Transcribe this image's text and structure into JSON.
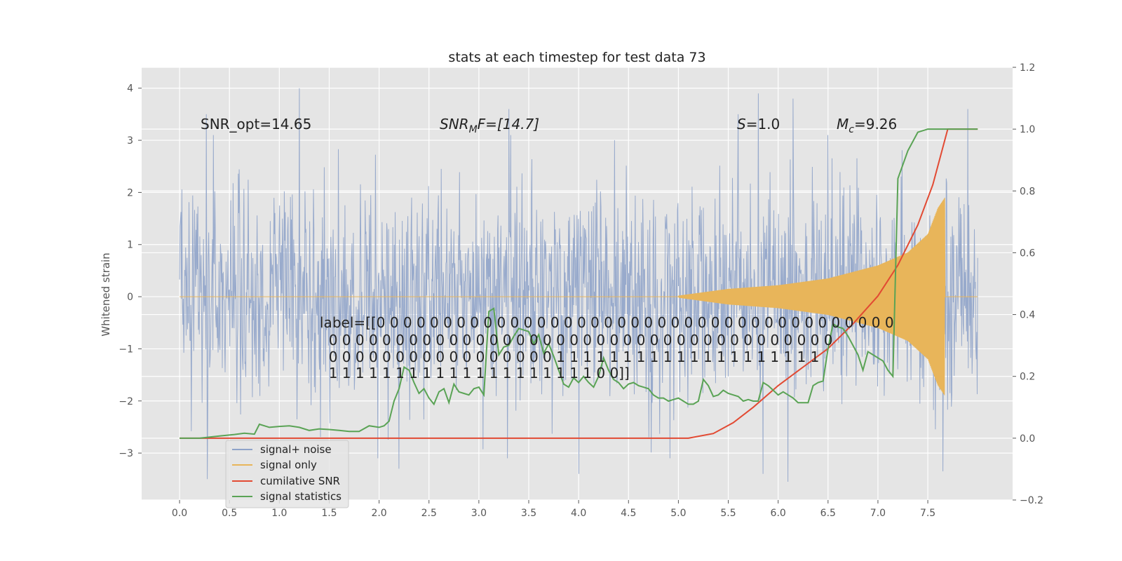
{
  "chart_data": {
    "type": "line",
    "title": "stats at each timestep for test data 73",
    "ylabel": "Whitened strain",
    "y2label": "",
    "xlim": [
      -0.38,
      8.35
    ],
    "ylim": [
      -3.9,
      4.4
    ],
    "y2lim": [
      -0.2,
      1.2
    ],
    "xticks": [
      0.0,
      0.5,
      1.0,
      1.5,
      2.0,
      2.5,
      3.0,
      3.5,
      4.0,
      4.5,
      5.0,
      5.5,
      6.0,
      6.5,
      7.0,
      7.5
    ],
    "xtick_labels": [
      "0.0",
      "0.5",
      "1.0",
      "1.5",
      "2.0",
      "2.5",
      "3.0",
      "3.5",
      "4.0",
      "4.5",
      "5.0",
      "5.5",
      "6.0",
      "6.5",
      "7.0",
      "7.5"
    ],
    "yticks": [
      -3,
      -2,
      -1,
      0,
      1,
      2,
      3,
      4
    ],
    "ytick_labels": [
      "−3",
      "−2",
      "−1",
      "0",
      "1",
      "2",
      "3",
      "4"
    ],
    "y2ticks": [
      -0.2,
      0.0,
      0.2,
      0.4,
      0.6,
      0.8,
      1.0,
      1.2
    ],
    "y2tick_labels": [
      "−0.2",
      "0.0",
      "0.2",
      "0.4",
      "0.6",
      "0.8",
      "1.0",
      "1.2"
    ],
    "grid": true,
    "legend_position": "lower-left",
    "annotations": {
      "snr_opt": "SNR_opt=14.65",
      "snr_mf_base": "SNR",
      "snr_mf_sub": "M",
      "snr_mf_rest": "F=[14.7]",
      "s_sym": "S",
      "s_val": "=1.0",
      "mc_base": "M",
      "mc_sub": "c",
      "mc_val": "=9.26",
      "label_lines": [
        "label=[[0 0 0 0 0 0 0 0 0 0 0 0 0 0 0 0 0 0 0 0 0 0 0 0 0 0 0 0 0 0 0 0 0 0 0 0 0 0 0",
        "  0 0 0 0 0 0 0 0 0 0 0 0 0 0 0 0 0 0 0 0 0 0 0 0 0 0 0 0 0 0 0 0 0 0 0 0 0 0",
        "  0 0 0 0 0 0 0 0 0 0 0 0 0 0 0 0 0 1 1 1 1 1 1 1 1 1 1 1 1 1 1 1 1 1 1 1 1",
        "  1 1 1 1 1 1 1 1 1 1 1 1 1 1 1 1 1 1 1 1 0 0]]"
      ]
    },
    "series": [
      {
        "name": "signal+ noise",
        "axis": "left",
        "color": "#8fa3c9",
        "kind": "noise",
        "x_range": [
          0.0,
          8.0
        ],
        "typical_range": [
          -2.0,
          2.0
        ],
        "notable_peaks": [
          {
            "x": 0.27,
            "y": 3.5
          },
          {
            "x": 0.28,
            "y": -3.5
          },
          {
            "x": 1.2,
            "y": 4.0
          },
          {
            "x": 2.2,
            "y": -3.3
          },
          {
            "x": 3.3,
            "y": 3.6
          },
          {
            "x": 4.0,
            "y": -3.4
          },
          {
            "x": 5.6,
            "y": 3.5
          },
          {
            "x": 5.8,
            "y": 3.9
          },
          {
            "x": 5.85,
            "y": -3.4
          },
          {
            "x": 6.1,
            "y": -3.55
          },
          {
            "x": 6.15,
            "y": 3.8
          },
          {
            "x": 7.65,
            "y": -3.35
          },
          {
            "x": 7.9,
            "y": 3.6
          }
        ]
      },
      {
        "name": "signal only",
        "axis": "left",
        "color": "#e8b55a",
        "kind": "chirp",
        "x_range": [
          0.0,
          8.0
        ],
        "onset": 5.0,
        "merger": 7.67,
        "envelope": [
          {
            "x": 5.0,
            "y": 0.02
          },
          {
            "x": 5.5,
            "y": 0.15
          },
          {
            "x": 6.0,
            "y": 0.22
          },
          {
            "x": 6.5,
            "y": 0.35
          },
          {
            "x": 7.0,
            "y": 0.6
          },
          {
            "x": 7.3,
            "y": 0.85
          },
          {
            "x": 7.5,
            "y": 1.2
          },
          {
            "x": 7.6,
            "y": 1.7
          },
          {
            "x": 7.67,
            "y": 1.9
          }
        ]
      },
      {
        "name": "cumilative SNR",
        "axis": "right",
        "color": "#e24a33",
        "x": [
          0.0,
          0.5,
          1.0,
          1.5,
          2.0,
          2.5,
          3.0,
          3.5,
          4.0,
          4.5,
          5.0,
          5.1,
          5.35,
          5.55,
          5.75,
          6.0,
          6.25,
          6.5,
          6.75,
          7.0,
          7.2,
          7.4,
          7.55,
          7.65,
          7.7,
          7.8,
          7.95,
          8.0
        ],
        "y": [
          0.0,
          0.0,
          0.0,
          0.0,
          0.0,
          0.0,
          0.0,
          0.0,
          0.0,
          0.0,
          0.0,
          0.0,
          0.015,
          0.05,
          0.1,
          0.17,
          0.23,
          0.29,
          0.37,
          0.46,
          0.56,
          0.69,
          0.82,
          0.94,
          1.0,
          1.0,
          1.0,
          1.0
        ]
      },
      {
        "name": "signal statistics",
        "axis": "right",
        "color": "#5aa355",
        "x": [
          0.0,
          0.2,
          0.4,
          0.55,
          0.65,
          0.75,
          0.8,
          0.9,
          1.0,
          1.1,
          1.2,
          1.3,
          1.4,
          1.5,
          1.6,
          1.7,
          1.8,
          1.9,
          2.0,
          2.05,
          2.1,
          2.15,
          2.2,
          2.25,
          2.3,
          2.35,
          2.4,
          2.45,
          2.5,
          2.55,
          2.6,
          2.65,
          2.7,
          2.75,
          2.8,
          2.85,
          2.9,
          2.95,
          3.0,
          3.05,
          3.1,
          3.15,
          3.2,
          3.25,
          3.3,
          3.35,
          3.4,
          3.45,
          3.5,
          3.55,
          3.6,
          3.65,
          3.7,
          3.75,
          3.8,
          3.85,
          3.9,
          3.95,
          4.0,
          4.05,
          4.1,
          4.15,
          4.2,
          4.25,
          4.3,
          4.35,
          4.4,
          4.45,
          4.5,
          4.55,
          4.6,
          4.65,
          4.7,
          4.75,
          4.8,
          4.85,
          4.9,
          4.95,
          5.0,
          5.05,
          5.1,
          5.15,
          5.2,
          5.25,
          5.3,
          5.35,
          5.4,
          5.45,
          5.5,
          5.55,
          5.6,
          5.65,
          5.7,
          5.75,
          5.8,
          5.85,
          5.9,
          5.95,
          6.0,
          6.05,
          6.1,
          6.15,
          6.2,
          6.25,
          6.3,
          6.35,
          6.4,
          6.45,
          6.5,
          6.55,
          6.6,
          6.65,
          6.7,
          6.75,
          6.8,
          6.85,
          6.9,
          6.95,
          7.0,
          7.05,
          7.1,
          7.15,
          7.2,
          7.3,
          7.4,
          7.5,
          7.6,
          7.7,
          7.8,
          7.9,
          8.0
        ],
        "y": [
          0.0,
          0.0,
          0.007,
          0.012,
          0.016,
          0.013,
          0.045,
          0.035,
          0.038,
          0.04,
          0.035,
          0.025,
          0.03,
          0.028,
          0.025,
          0.022,
          0.022,
          0.04,
          0.035,
          0.04,
          0.055,
          0.12,
          0.16,
          0.23,
          0.22,
          0.18,
          0.145,
          0.16,
          0.13,
          0.11,
          0.15,
          0.16,
          0.115,
          0.175,
          0.15,
          0.145,
          0.14,
          0.16,
          0.165,
          0.14,
          0.41,
          0.42,
          0.27,
          0.295,
          0.3,
          0.33,
          0.355,
          0.35,
          0.345,
          0.305,
          0.335,
          0.275,
          0.305,
          0.265,
          0.22,
          0.175,
          0.165,
          0.195,
          0.18,
          0.2,
          0.18,
          0.165,
          0.2,
          0.26,
          0.22,
          0.19,
          0.18,
          0.16,
          0.175,
          0.18,
          0.17,
          0.165,
          0.16,
          0.14,
          0.13,
          0.13,
          0.12,
          0.125,
          0.13,
          0.12,
          0.11,
          0.11,
          0.12,
          0.19,
          0.17,
          0.135,
          0.14,
          0.155,
          0.145,
          0.14,
          0.135,
          0.12,
          0.125,
          0.12,
          0.12,
          0.18,
          0.17,
          0.155,
          0.14,
          0.15,
          0.14,
          0.13,
          0.115,
          0.115,
          0.115,
          0.17,
          0.18,
          0.185,
          0.29,
          0.37,
          0.36,
          0.355,
          0.33,
          0.3,
          0.27,
          0.22,
          0.28,
          0.27,
          0.26,
          0.25,
          0.22,
          0.2,
          0.84,
          0.93,
          0.99,
          1.0,
          1.0,
          1.0,
          1.0,
          1.0,
          1.0
        ]
      }
    ]
  }
}
